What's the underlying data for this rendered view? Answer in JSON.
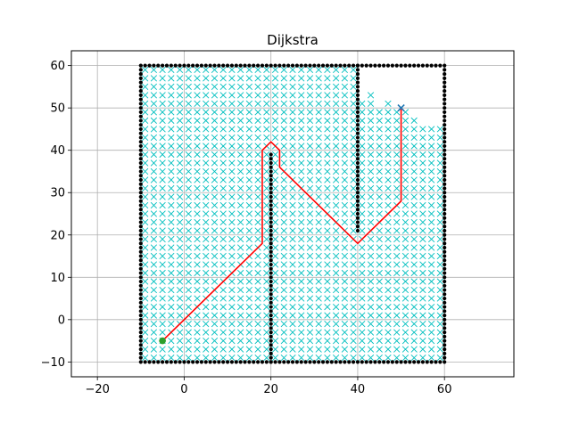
{
  "chart_data": {
    "type": "scatter",
    "title": "Dijkstra",
    "xlabel": "",
    "ylabel": "",
    "xlim": [
      -26,
      76
    ],
    "ylim": [
      -13.5,
      63.5
    ],
    "xticks": [
      -20,
      0,
      20,
      40,
      60
    ],
    "yticks": [
      -10,
      0,
      10,
      20,
      30,
      40,
      50,
      60
    ],
    "grid": true,
    "grid_resolution": 2,
    "start": [
      -5,
      -5
    ],
    "goal": [
      50,
      50
    ],
    "colors": {
      "obstacle": "#000000",
      "explored": "#00bfbf",
      "path": "#ff0000",
      "start": "#2ca02c",
      "goal": "#1f77b4",
      "grid": "#b0b0b0"
    },
    "obstacles": {
      "boundary": {
        "x": [
          -10,
          60
        ],
        "y": [
          -10,
          60
        ]
      },
      "walls": [
        {
          "x": 20,
          "y": [
            -10,
            39
          ]
        },
        {
          "x": 40,
          "y": [
            21,
            60
          ]
        }
      ]
    },
    "explored_region": {
      "x_range": [
        -9,
        59
      ],
      "y_range": [
        -9,
        59
      ],
      "unexplored_cells": [
        {
          "x_from": 41,
          "x_to": 42,
          "y_from": 53,
          "y_to": 59
        },
        {
          "x_from": 43,
          "x_to": 44,
          "y_from": 54,
          "y_to": 59
        },
        {
          "x_from": 45,
          "x_to": 46,
          "y_from": 51,
          "y_to": 59
        },
        {
          "x_from": 47,
          "x_to": 48,
          "y_from": 52,
          "y_to": 59
        },
        {
          "x_from": 49,
          "x_to": 50,
          "y_from": 51,
          "y_to": 59
        },
        {
          "x_from": 51,
          "x_to": 52,
          "y_from": 50,
          "y_to": 59
        },
        {
          "x_from": 53,
          "x_to": 54,
          "y_from": 49,
          "y_to": 59
        },
        {
          "x_from": 55,
          "x_to": 56,
          "y_from": 47,
          "y_to": 59
        },
        {
          "x_from": 57,
          "x_to": 59,
          "y_from": 47,
          "y_to": 59
        }
      ]
    },
    "path": {
      "x": [
        -5,
        18,
        18,
        20,
        22,
        22,
        40,
        50,
        50
      ],
      "y": [
        -5,
        18,
        40,
        42,
        40,
        36,
        18,
        28,
        50
      ]
    }
  }
}
